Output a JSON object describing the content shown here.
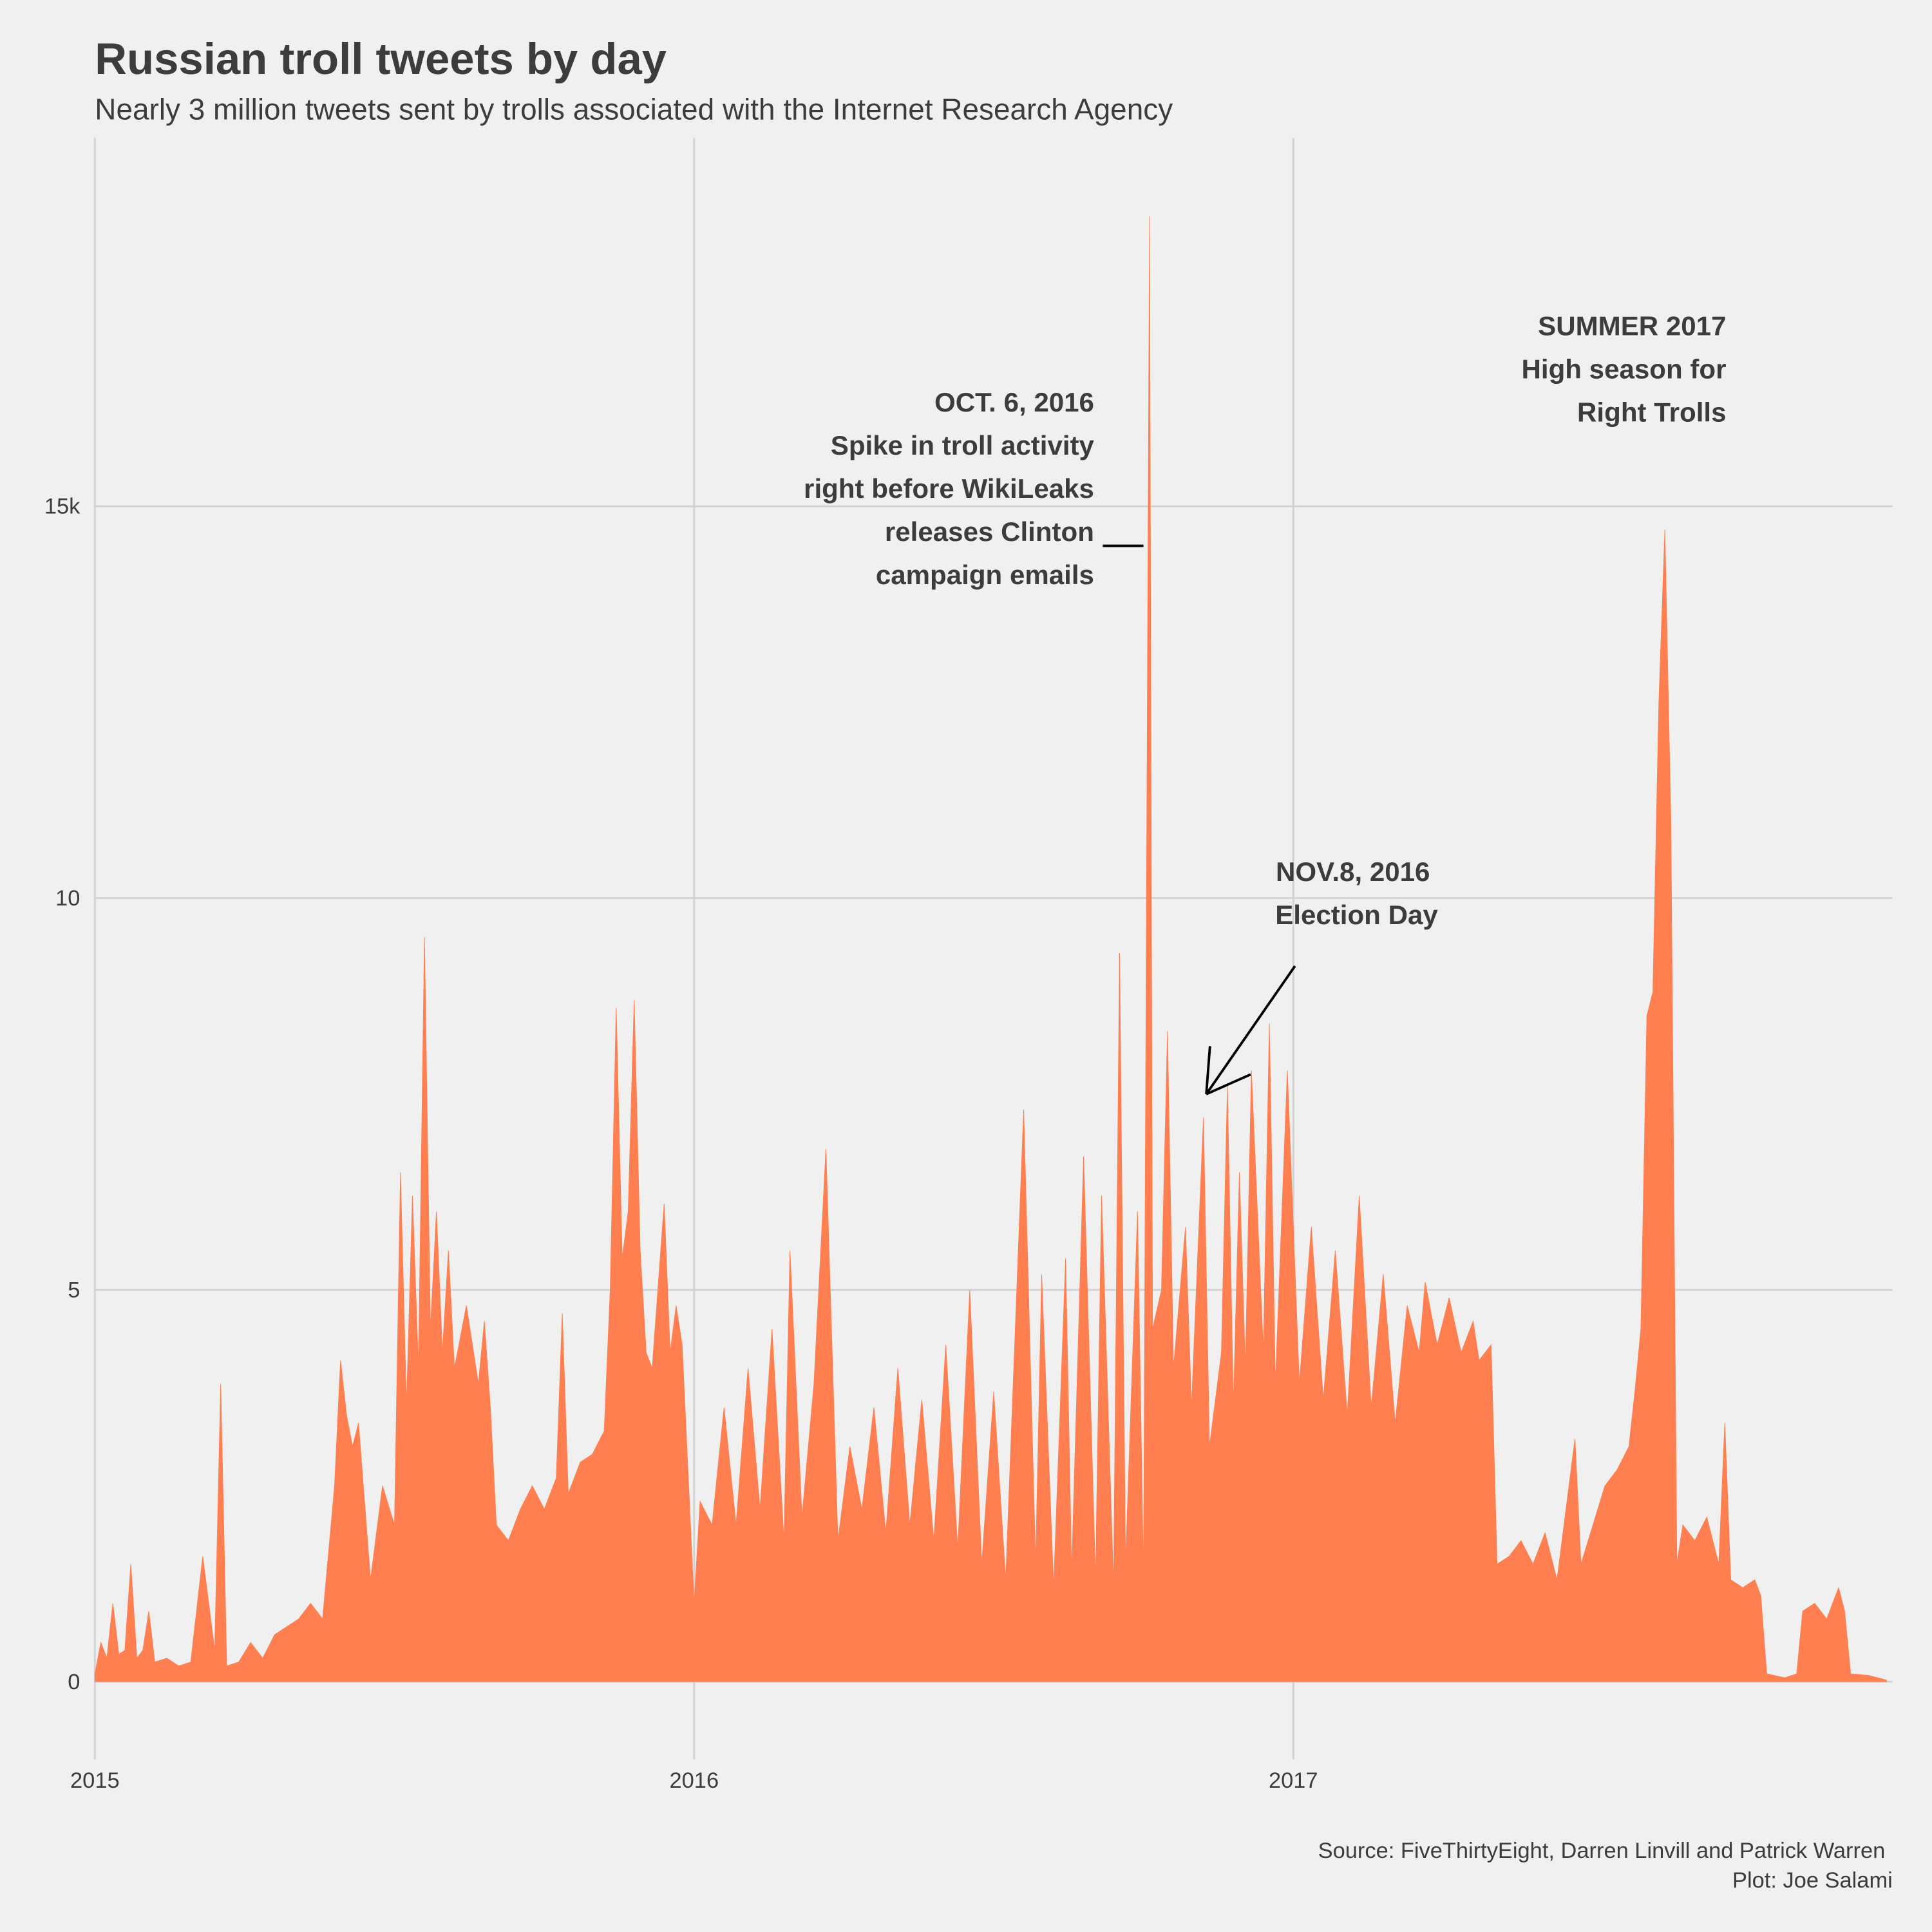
{
  "chart_data": {
    "type": "area",
    "title": "Russian troll tweets by day",
    "subtitle": "Nearly 3 million tweets sent by trolls associated with the Internet Research Agency",
    "caption": [
      "Source: FiveThirtyEight, Darren Linvill and Patrick Warren",
      "Plot: Joe Salami"
    ],
    "annotations": [
      {
        "lines": [
          "OCT. 6, 2016",
          "Spike in troll activity",
          "right before WikiLeaks",
          "releases Clinton",
          "campaign emails"
        ]
      },
      {
        "lines": [
          "NOV.8, 2016",
          "Election Day"
        ]
      },
      {
        "lines": [
          "SUMMER 2017",
          "High season for",
          "Right Trolls"
        ]
      }
    ],
    "color": "#ff7f50",
    "grid": true,
    "xlim": [
      2015,
      2018
    ],
    "xticks": [
      2015,
      2016,
      2017
    ],
    "ylim": [
      -600,
      19700
    ],
    "yticks": [
      0,
      {
        "value": 5000,
        "label": "5"
      },
      {
        "value": 10000,
        "label": "10"
      },
      {
        "value": 15000,
        "label": "15k"
      }
    ],
    "x": [
      2015.0,
      2015.01,
      2015.02,
      2015.03,
      2015.04,
      2015.05,
      2015.06,
      2015.07,
      2015.08,
      2015.09,
      2015.1,
      2015.12,
      2015.14,
      2015.16,
      2015.18,
      2015.2,
      2015.21,
      2015.22,
      2015.24,
      2015.26,
      2015.28,
      2015.3,
      2015.32,
      2015.34,
      2015.36,
      2015.38,
      2015.4,
      2015.41,
      2015.42,
      2015.43,
      2015.44,
      2015.46,
      2015.48,
      2015.5,
      2015.51,
      2015.52,
      2015.53,
      2015.54,
      2015.55,
      2015.56,
      2015.57,
      2015.58,
      2015.59,
      2015.6,
      2015.62,
      2015.64,
      2015.65,
      2015.66,
      2015.67,
      2015.69,
      2015.71,
      2015.73,
      2015.75,
      2015.77,
      2015.78,
      2015.79,
      2015.81,
      2015.83,
      2015.85,
      2015.86,
      2015.87,
      2015.88,
      2015.89,
      2015.9,
      2015.91,
      2015.92,
      2015.93,
      2015.95,
      2015.96,
      2015.97,
      2015.98,
      2016.0,
      2016.01,
      2016.03,
      2016.05,
      2016.07,
      2016.09,
      2016.11,
      2016.13,
      2016.15,
      2016.16,
      2016.18,
      2016.2,
      2016.22,
      2016.24,
      2016.26,
      2016.28,
      2016.3,
      2016.32,
      2016.34,
      2016.36,
      2016.38,
      2016.4,
      2016.42,
      2016.44,
      2016.46,
      2016.48,
      2016.5,
      2016.52,
      2016.55,
      2016.57,
      2016.58,
      2016.6,
      2016.62,
      2016.63,
      2016.65,
      2016.67,
      2016.68,
      2016.7,
      2016.71,
      2016.72,
      2016.74,
      2016.75,
      2016.76,
      2016.765,
      2016.78,
      2016.79,
      2016.8,
      2016.82,
      2016.83,
      2016.85,
      2016.86,
      2016.88,
      2016.89,
      2016.9,
      2016.91,
      2016.92,
      2016.93,
      2016.95,
      2016.96,
      2016.97,
      2016.99,
      2017.01,
      2017.03,
      2017.05,
      2017.07,
      2017.09,
      2017.11,
      2017.13,
      2017.15,
      2017.17,
      2017.19,
      2017.21,
      2017.22,
      2017.24,
      2017.26,
      2017.28,
      2017.3,
      2017.31,
      2017.33,
      2017.34,
      2017.36,
      2017.38,
      2017.4,
      2017.42,
      2017.44,
      2017.46,
      2017.47,
      2017.48,
      2017.5,
      2017.52,
      2017.54,
      2017.56,
      2017.57,
      2017.58,
      2017.59,
      2017.6,
      2017.61,
      2017.62,
      2017.63,
      2017.64,
      2017.65,
      2017.67,
      2017.69,
      2017.71,
      2017.72,
      2017.73,
      2017.75,
      2017.77,
      2017.78,
      2017.79,
      2017.82,
      2017.84,
      2017.85,
      2017.87,
      2017.89,
      2017.91,
      2017.92,
      2017.93,
      2017.96,
      2017.99
    ],
    "values": [
      100,
      500,
      300,
      1000,
      350,
      400,
      1500,
      300,
      400,
      900,
      250,
      300,
      200,
      250,
      1600,
      400,
      3800,
      200,
      250,
      500,
      300,
      600,
      700,
      800,
      1000,
      800,
      2500,
      4100,
      3400,
      3000,
      3300,
      1300,
      2500,
      2000,
      6500,
      3500,
      6200,
      4000,
      9500,
      4500,
      6000,
      4200,
      5500,
      4000,
      4800,
      3800,
      4600,
      3500,
      2000,
      1800,
      2200,
      2500,
      2200,
      2600,
      4700,
      2400,
      2800,
      2900,
      3200,
      5000,
      8600,
      5400,
      6000,
      8700,
      5500,
      4200,
      4000,
      6100,
      4200,
      4800,
      4300,
      1000,
      2300,
      2000,
      3500,
      2000,
      4000,
      2200,
      4500,
      1800,
      5500,
      2100,
      3800,
      6800,
      1800,
      3000,
      2200,
      3500,
      1900,
      4000,
      2000,
      3600,
      1800,
      4300,
      1700,
      5000,
      1500,
      3700,
      1300,
      7300,
      1500,
      5200,
      1200,
      5400,
      1400,
      6700,
      1300,
      6200,
      1200,
      9300,
      1500,
      6000,
      1300,
      18700,
      4500,
      5000,
      8300,
      4000,
      5800,
      3500,
      7200,
      3000,
      4200,
      7600,
      3500,
      6500,
      4000,
      7800,
      4200,
      8400,
      3800,
      7800,
      3800,
      5800,
      3600,
      5500,
      3400,
      6200,
      3500,
      5200,
      3300,
      4800,
      4200,
      5100,
      4300,
      4900,
      4200,
      4600,
      4100,
      4300,
      1500,
      1600,
      1800,
      1500,
      1900,
      1300,
      2500,
      3100,
      1500,
      2000,
      2500,
      2700,
      3000,
      3700,
      4500,
      8500,
      8800,
      12500,
      14700,
      11000,
      1500,
      2000,
      1800,
      2100,
      1500,
      3300,
      1300,
      1200,
      1300,
      1100,
      100,
      50,
      100,
      900,
      1000,
      800,
      1200,
      900,
      100,
      80,
      20
    ]
  }
}
